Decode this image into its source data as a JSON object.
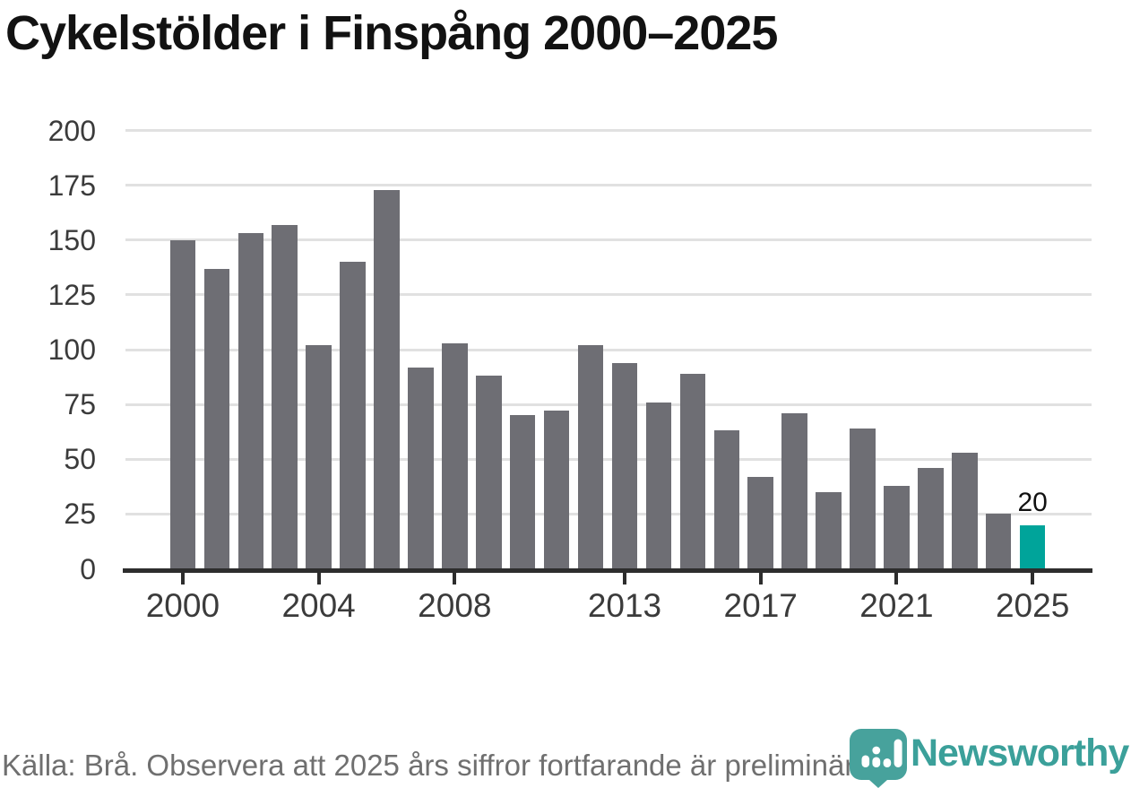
{
  "title": "Cykelstölder i Finspång 2000–2025",
  "footer": {
    "source_note": "Källa: Brå. Observera att 2025 års siffror fortfarande är preliminära.",
    "brand_name": "Newsworthy"
  },
  "colors": {
    "bar": "#6e6e74",
    "highlight": "#00a49a",
    "grid": "#e1e1e1",
    "axis": "#2d2d2d",
    "axis_text": "#3b3b3b",
    "title_text": "#121212",
    "footer_text": "#6f6f6f",
    "brand_teal": "#3ba09a",
    "brand_icon_teal": "#47a29c"
  },
  "chart_data": {
    "type": "bar",
    "title": "Cykelstölder i Finspång 2000–2025",
    "x": [
      2000,
      2001,
      2002,
      2003,
      2004,
      2005,
      2006,
      2007,
      2008,
      2009,
      2010,
      2011,
      2012,
      2013,
      2014,
      2015,
      2016,
      2017,
      2018,
      2019,
      2020,
      2021,
      2022,
      2023,
      2024,
      2025
    ],
    "values": [
      150,
      137,
      153,
      157,
      102,
      140,
      173,
      92,
      103,
      88,
      70,
      72,
      102,
      94,
      76,
      89,
      63,
      42,
      71,
      35,
      64,
      38,
      46,
      53,
      25,
      20
    ],
    "highlight_x": 2025,
    "highlight_value_label": "20",
    "ylim": [
      0,
      200
    ],
    "y_ticks": [
      0,
      25,
      50,
      75,
      100,
      125,
      150,
      175,
      200
    ],
    "x_tick_labels": [
      "2000",
      "2004",
      "2008",
      "2013",
      "2017",
      "2021",
      "2025"
    ],
    "grid": "horizontal",
    "legend": "none",
    "xlabel": "",
    "ylabel": ""
  }
}
